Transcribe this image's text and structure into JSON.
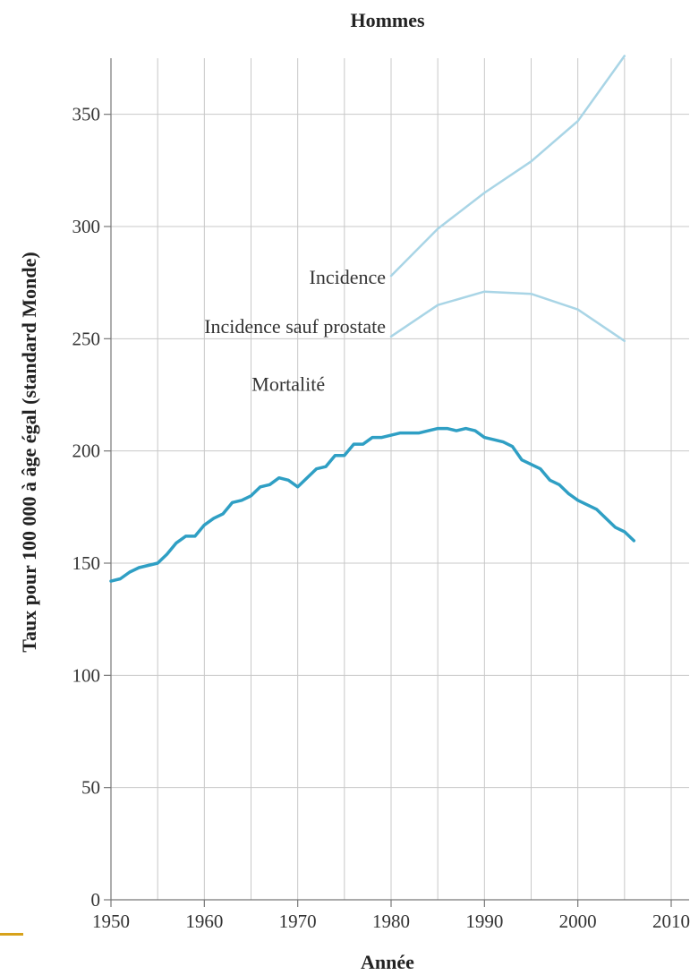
{
  "chart_data": {
    "type": "line",
    "title": "Hommes",
    "xlabel": "Année",
    "ylabel": "Taux pour 100 000 à âge égal (standard Monde)",
    "xlim": [
      1950,
      2010
    ],
    "ylim": [
      0,
      375
    ],
    "xticks": [
      "1950",
      "1960",
      "1970",
      "1980",
      "1990",
      "2000",
      "2010"
    ],
    "yticks": [
      "0",
      "50",
      "100",
      "150",
      "200",
      "250",
      "300",
      "350"
    ],
    "grid": true,
    "colors": {
      "incidence": "#a9d5e6",
      "mortality": "#2f9fc4"
    },
    "series": [
      {
        "name": "Incidence",
        "x": [
          1980,
          1985,
          1990,
          1995,
          2000,
          2005
        ],
        "y": [
          278,
          299,
          315,
          329,
          347,
          376
        ]
      },
      {
        "name": "Incidence sauf prostate",
        "x": [
          1980,
          1985,
          1990,
          1995,
          2000,
          2005
        ],
        "y": [
          251,
          265,
          271,
          270,
          263,
          249
        ]
      },
      {
        "name": "Mortalité",
        "x": [
          1950,
          1951,
          1952,
          1953,
          1954,
          1955,
          1956,
          1957,
          1958,
          1959,
          1960,
          1961,
          1962,
          1963,
          1964,
          1965,
          1966,
          1967,
          1968,
          1969,
          1970,
          1971,
          1972,
          1973,
          1974,
          1975,
          1976,
          1977,
          1978,
          1979,
          1980,
          1981,
          1982,
          1983,
          1984,
          1985,
          1986,
          1987,
          1988,
          1989,
          1990,
          1991,
          1992,
          1993,
          1994,
          1995,
          1996,
          1997,
          1998,
          1999,
          2000,
          2001,
          2002,
          2003,
          2004,
          2005,
          2006
        ],
        "y": [
          142,
          143,
          146,
          148,
          149,
          150,
          154,
          159,
          162,
          162,
          167,
          170,
          172,
          177,
          178,
          180,
          184,
          185,
          188,
          187,
          184,
          188,
          192,
          193,
          198,
          198,
          203,
          203,
          206,
          206,
          207,
          208,
          208,
          208,
          209,
          210,
          210,
          209,
          210,
          209,
          206,
          205,
          204,
          202,
          196,
          194,
          192,
          187,
          185,
          181,
          178,
          176,
          174,
          170,
          166,
          164,
          160
        ]
      }
    ]
  }
}
